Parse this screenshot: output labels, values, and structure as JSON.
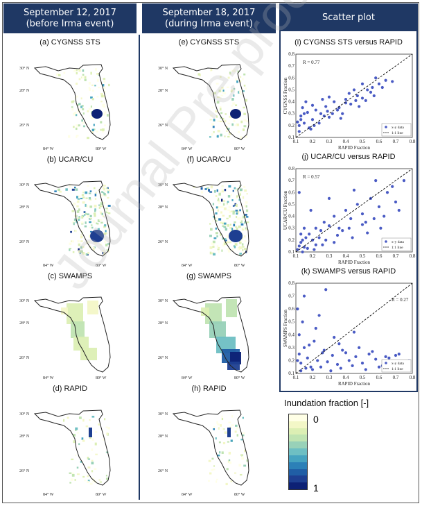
{
  "headers": {
    "col1": [
      "September 12, 2017",
      "(before Irma event)"
    ],
    "col2": [
      "September 18, 2017",
      "(during Irma event)"
    ],
    "col3": "Scatter plot"
  },
  "panels": {
    "a": "(a) CYGNSS STS",
    "b": "(b) UCAR/CU",
    "c": "(c) SWAMPS",
    "d": "(d) RAPID",
    "e": "(e) CYGNSS STS",
    "f": "(f) UCAR/CU",
    "g": "(g) SWAMPS",
    "h": "(h) RAPID",
    "i": "(i) CYGNSS STS versus RAPID",
    "j": "(j) UCAR/CU versus RAPID",
    "k": "(k) SWAMPS versus RAPID"
  },
  "map_axes": {
    "lat_ticks": [
      "30° N",
      "28° N",
      "26° N"
    ],
    "lon_ticks": [
      "84° W",
      "80° W"
    ]
  },
  "legend": {
    "title": "Inundation fraction [-]",
    "min_label": "0",
    "max_label": "1",
    "colors": [
      "#ffffe6",
      "#f3f7c7",
      "#dcefb4",
      "#c0e4b2",
      "#98d1b8",
      "#6ebfc3",
      "#46a3c0",
      "#2c80b7",
      "#205ea5",
      "#1e3f91",
      "#0d2175"
    ]
  },
  "watermark": "Journal Pre-proofs",
  "chart_data": [
    {
      "type": "scatter",
      "title": "(i) CYGNSS STS versus RAPID",
      "xlabel": "RAPID Fraction",
      "ylabel": "CYGNSS Fraction",
      "xlim": [
        0.1,
        0.8
      ],
      "ylim": [
        0.1,
        0.8
      ],
      "x_ticks": [
        "0.1",
        "0.2",
        "0.3",
        "0.4",
        "0.5",
        "0.6",
        "0.7",
        "0.8"
      ],
      "y_ticks": [
        "0.1",
        "0.2",
        "0.3",
        "0.4",
        "0.5",
        "0.6",
        "0.7",
        "0.8"
      ],
      "annotation": "R = 0.77",
      "legend_entries": [
        "x-y data",
        "1:1 line"
      ],
      "legend_position": "bottom-right",
      "series": [
        {
          "name": "x-y data",
          "color": "#4a5bc4",
          "x": [
            0.12,
            0.13,
            0.15,
            0.17,
            0.2,
            0.22,
            0.25,
            0.28,
            0.3,
            0.33,
            0.36,
            0.4,
            0.43,
            0.47,
            0.5,
            0.53,
            0.56,
            0.6,
            0.64,
            0.68,
            0.12,
            0.14,
            0.18,
            0.24,
            0.3,
            0.38,
            0.45,
            0.52,
            0.58,
            0.13,
            0.16,
            0.21,
            0.27,
            0.35,
            0.42,
            0.48,
            0.55,
            0.62,
            0.15,
            0.2,
            0.26,
            0.32,
            0.4,
            0.5,
            0.57,
            0.11,
            0.19,
            0.29,
            0.37,
            0.46
          ],
          "y": [
            0.2,
            0.28,
            0.22,
            0.31,
            0.25,
            0.33,
            0.3,
            0.36,
            0.27,
            0.4,
            0.35,
            0.42,
            0.38,
            0.45,
            0.43,
            0.5,
            0.52,
            0.55,
            0.58,
            0.57,
            0.15,
            0.35,
            0.18,
            0.22,
            0.44,
            0.3,
            0.5,
            0.41,
            0.6,
            0.25,
            0.4,
            0.2,
            0.28,
            0.33,
            0.47,
            0.36,
            0.48,
            0.52,
            0.3,
            0.37,
            0.42,
            0.3,
            0.39,
            0.55,
            0.45,
            0.23,
            0.17,
            0.32,
            0.26,
            0.41
          ]
        }
      ]
    },
    {
      "type": "scatter",
      "title": "(j) UCAR/CU versus RAPID",
      "xlabel": "RAPID Fraction",
      "ylabel": "UCAR/CU Fraction",
      "xlim": [
        0.1,
        0.8
      ],
      "ylim": [
        0.1,
        0.8
      ],
      "x_ticks": [
        "0.1",
        "0.2",
        "0.3",
        "0.4",
        "0.5",
        "0.6",
        "0.7",
        "0.8"
      ],
      "y_ticks": [
        "0.1",
        "0.2",
        "0.3",
        "0.4",
        "0.5",
        "0.6",
        "0.7",
        "0.8"
      ],
      "annotation": "R = 0.57",
      "legend_entries": [
        "x-y data",
        "1:1 line"
      ],
      "legend_position": "bottom-right",
      "series": [
        {
          "name": "x-y data",
          "color": "#4a5bc4",
          "x": [
            0.11,
            0.12,
            0.13,
            0.14,
            0.15,
            0.16,
            0.18,
            0.2,
            0.22,
            0.25,
            0.27,
            0.3,
            0.33,
            0.36,
            0.4,
            0.43,
            0.47,
            0.5,
            0.55,
            0.6,
            0.65,
            0.7,
            0.75,
            0.12,
            0.15,
            0.19,
            0.24,
            0.3,
            0.38,
            0.45,
            0.52,
            0.58,
            0.63,
            0.68,
            0.72,
            0.13,
            0.17,
            0.22,
            0.28,
            0.35,
            0.42,
            0.5,
            0.57,
            0.14,
            0.21,
            0.26,
            0.33,
            0.44,
            0.53,
            0.61
          ],
          "y": [
            0.12,
            0.15,
            0.18,
            0.2,
            0.14,
            0.22,
            0.25,
            0.2,
            0.3,
            0.28,
            0.35,
            0.32,
            0.4,
            0.3,
            0.45,
            0.38,
            0.5,
            0.42,
            0.55,
            0.48,
            0.6,
            0.52,
            0.7,
            0.6,
            0.3,
            0.45,
            0.22,
            0.55,
            0.28,
            0.62,
            0.35,
            0.7,
            0.4,
            0.65,
            0.45,
            0.25,
            0.13,
            0.16,
            0.2,
            0.24,
            0.3,
            0.33,
            0.38,
            0.1,
            0.12,
            0.16,
            0.18,
            0.22,
            0.26,
            0.3
          ]
        }
      ]
    },
    {
      "type": "scatter",
      "title": "(k) SWAMPS versus RAPID",
      "xlabel": "RAPID Fraction",
      "ylabel": "SWAMPS Fraction",
      "xlim": [
        0.1,
        0.8
      ],
      "ylim": [
        0.1,
        0.8
      ],
      "x_ticks": [
        "0.1",
        "0.2",
        "0.3",
        "0.4",
        "0.5",
        "0.6",
        "0.7",
        "0.8"
      ],
      "y_ticks": [
        "0.1",
        "0.2",
        "0.3",
        "0.4",
        "0.5",
        "0.6",
        "0.7",
        "0.8"
      ],
      "annotation": "R = 0.27",
      "legend_entries": [
        "x-y data",
        "1:1 line"
      ],
      "legend_position": "bottom-right",
      "series": [
        {
          "name": "x-y data",
          "color": "#4a5bc4",
          "x": [
            0.11,
            0.12,
            0.13,
            0.15,
            0.17,
            0.19,
            0.21,
            0.23,
            0.26,
            0.29,
            0.32,
            0.35,
            0.38,
            0.42,
            0.46,
            0.5,
            0.54,
            0.58,
            0.62,
            0.66,
            0.7,
            0.74,
            0.78,
            0.12,
            0.14,
            0.18,
            0.22,
            0.27,
            0.33,
            0.4,
            0.48,
            0.56,
            0.64,
            0.72,
            0.13,
            0.16,
            0.2,
            0.25,
            0.31,
            0.37,
            0.44,
            0.52,
            0.6,
            0.68,
            0.11,
            0.15,
            0.24,
            0.28,
            0.36,
            0.45
          ],
          "y": [
            0.2,
            0.25,
            0.18,
            0.3,
            0.22,
            0.15,
            0.35,
            0.2,
            0.26,
            0.19,
            0.24,
            0.17,
            0.28,
            0.2,
            0.23,
            0.18,
            0.25,
            0.21,
            0.16,
            0.22,
            0.24,
            0.19,
            0.2,
            0.4,
            0.5,
            0.32,
            0.45,
            0.28,
            0.38,
            0.26,
            0.3,
            0.27,
            0.23,
            0.25,
            0.12,
            0.14,
            0.13,
            0.15,
            0.12,
            0.14,
            0.16,
            0.13,
            0.15,
            0.14,
            0.6,
            0.7,
            0.55,
            0.75,
            0.33,
            0.42
          ]
        }
      ]
    }
  ]
}
